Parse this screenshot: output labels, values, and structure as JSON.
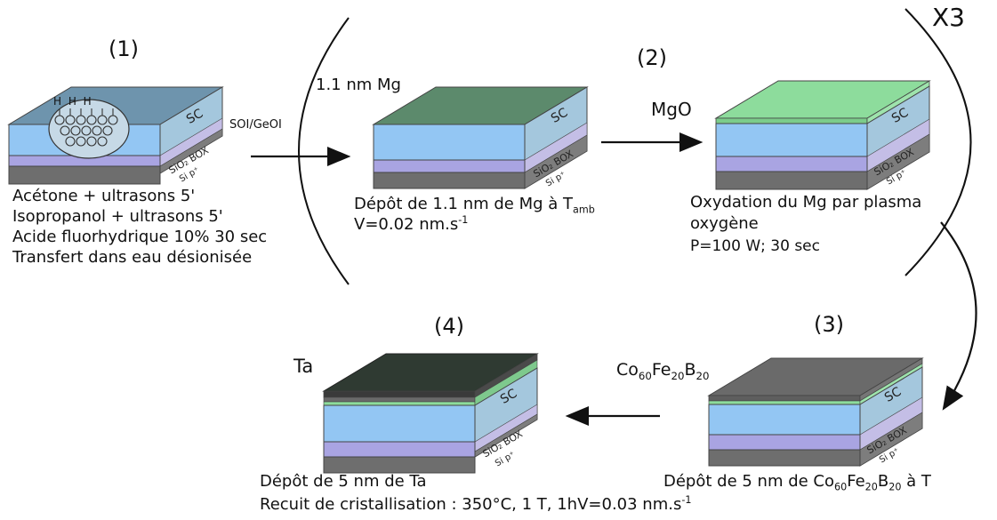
{
  "step1": {
    "number": "(1)",
    "label_sc": "SC",
    "label_box": "SiO₂ BOX",
    "label_si": "Si p⁺",
    "h_marks": "H H H",
    "treatment_lines": [
      "Acétone + ultrasons 5'",
      "Isopropanol + ultrasons 5'",
      "Acide fluorhydrique 10% 30 sec",
      "Transfert dans eau désionisée"
    ]
  },
  "arrow1_label": "SOI/GeOI",
  "repeat_label": "X3",
  "mg_layer": {
    "label": "1.1 nm Mg",
    "label_sc": "SC",
    "label_box": "SiO₂ BOX",
    "label_si": "Si p⁺",
    "deposit_text": "Dépôt de 1.1 nm de Mg à T",
    "deposit_sub": "amb",
    "rate_text": "V=0.02 nm.s",
    "rate_sup": "-1"
  },
  "step2": {
    "number": "(2)",
    "layer_label": "MgO",
    "label_sc": "SC",
    "label_box": "SiO₂ BOX",
    "label_si": "Si p⁺",
    "oxidation_line1": "Oxydation du Mg par plasma",
    "oxidation_line2": "oxygène",
    "oxidation_line3": "P=100 W; 30 sec"
  },
  "step3": {
    "number": "(3)",
    "layer_label_parts": [
      "Co",
      "60",
      "Fe",
      "20",
      "B",
      "20"
    ],
    "label_sc": "SC",
    "label_box": "SiO₂ BOX",
    "label_si": "Si p⁺",
    "deposit_parts": [
      "Dépôt de 5 nm de Co",
      "60",
      "Fe",
      "20",
      "B",
      "20",
      " à T"
    ]
  },
  "step4": {
    "number": "(4)",
    "layer_label": "Ta",
    "label_sc": "SC",
    "label_box": "SiO₂ BOX",
    "label_si": "Si p⁺",
    "deposit_text": "Dépôt de 5 nm de Ta",
    "anneal_text": "Recuit de cristallisation : 350°C, 1 T, 1h",
    "rate_text": "V=0.03 nm.s",
    "rate_sup": "-1"
  },
  "colors": {
    "sc_front": "#93c6f3",
    "sc_side": "#a4c7dd",
    "sc_top": "#6e94ad",
    "box_front": "#a9a4e2",
    "box_side": "#c4bee6",
    "si_front": "#6e6e6e",
    "si_side": "#7d7d7d",
    "mg": "#5c8a6c",
    "mgo": "#8ddc9c",
    "cofeb": "#6a6a6a",
    "ta": "#2f3a32"
  }
}
